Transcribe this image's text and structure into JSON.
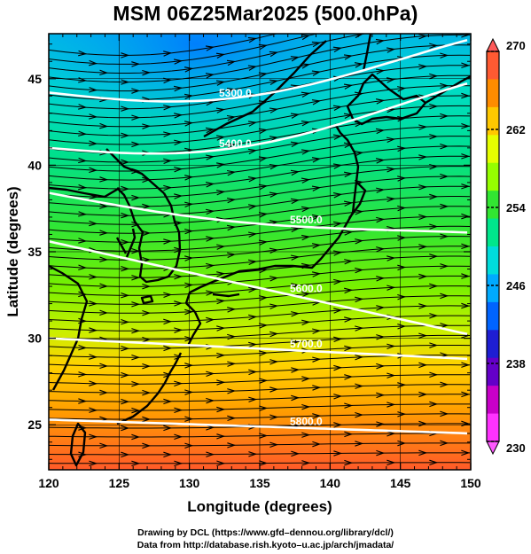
{
  "title": "MSM 06Z25Mar2025 (500.0hPa)",
  "x_axis": {
    "label": "Longitude (degrees)",
    "range": [
      120,
      150
    ],
    "ticks": [
      120,
      125,
      130,
      135,
      140,
      145,
      150
    ]
  },
  "y_axis": {
    "label": "Latitude  (degrees)",
    "range": [
      22.4,
      47.6
    ],
    "ticks": [
      25,
      30,
      35,
      40,
      45
    ]
  },
  "colorbar": {
    "range": [
      230,
      270
    ],
    "tick_labels": [
      "270",
      "262",
      "254",
      "246",
      "238",
      "230"
    ],
    "tick_values": [
      270,
      262,
      254,
      246,
      238,
      230
    ],
    "colors_top_to_bottom": [
      "#ff5a32",
      "#ff8c00",
      "#ffc800",
      "#e6ff00",
      "#96ff00",
      "#32e632",
      "#00e68c",
      "#00dcdc",
      "#00aaff",
      "#0064ff",
      "#1e1ed2",
      "#6400c8",
      "#c800c8",
      "#ff32ff"
    ]
  },
  "contours": [
    {
      "label": "5800.0",
      "lat_start": 25.3,
      "lat_end": 24.5
    },
    {
      "label": "5700.0",
      "lat_start": 30.0,
      "lat_end": 28.8
    },
    {
      "label": "5600.0",
      "lat_start": 35.6,
      "lat_end": 30.2
    },
    {
      "label": "5500.0",
      "lat_start": 38.4,
      "lat_end": 35.8
    },
    {
      "label": "5400.0",
      "lat_start": 41.0,
      "lat_end": 44.0
    },
    {
      "label": "5300.0",
      "lat_start": 44.2,
      "lat_end": 46.5
    }
  ],
  "credits": {
    "line1": "Drawing by DCL (https://www.gfd–dennou.org/library/dcl/)",
    "line2": "Data from http://database.rish.kyoto–u.ac.jp/arch/jmadata/"
  }
}
